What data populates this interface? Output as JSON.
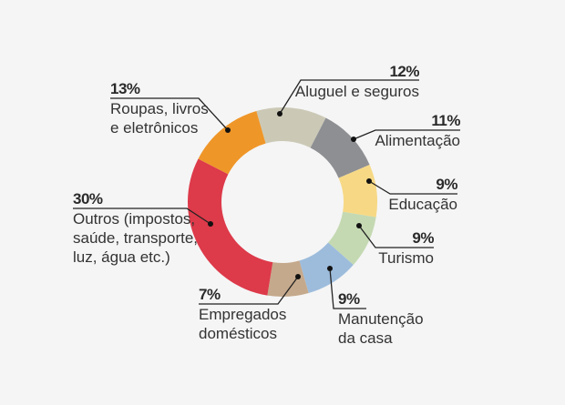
{
  "chart_data": {
    "type": "pie",
    "variant": "donut",
    "title": "",
    "slices": [
      {
        "label": "Aluguel e seguros",
        "value": 12,
        "pct_text": "12%",
        "color": "#cbc9b6"
      },
      {
        "label": "Alimentação",
        "value": 11,
        "pct_text": "11%",
        "color": "#8e8f93"
      },
      {
        "label": "Educação",
        "value": 9,
        "pct_text": "9%",
        "color": "#f7d985"
      },
      {
        "label": "Turismo",
        "value": 9,
        "pct_text": "9%",
        "color": "#c4d9b2"
      },
      {
        "label": "Manutenção da casa",
        "value": 9,
        "pct_text": "9%",
        "color": "#9dbcdc"
      },
      {
        "label": "Empregados domésticos",
        "value": 7,
        "pct_text": "7%",
        "color": "#c5a98c"
      },
      {
        "label": "Outros (impostos, saúde, transporte, luz, água etc.)",
        "value": 30,
        "pct_text": "30%",
        "color": "#dd3a4a"
      },
      {
        "label": "Roupas, livros e eletrônicos",
        "value": 13,
        "pct_text": "13%",
        "color": "#ef9629"
      }
    ],
    "legend_position": "callouts"
  },
  "labels": {
    "aluguel": {
      "pct": "12%",
      "line1": "Aluguel e seguros"
    },
    "alimentacao": {
      "pct": "11%",
      "line1": "Alimentação"
    },
    "educacao": {
      "pct": "9%",
      "line1": "Educação"
    },
    "turismo": {
      "pct": "9%",
      "line1": "Turismo"
    },
    "manutencao": {
      "pct": "9%",
      "line1": "Manutenção",
      "line2": "da casa"
    },
    "empregados": {
      "pct": "7%",
      "line1": "Empregados",
      "line2": "domésticos"
    },
    "outros": {
      "pct": "30%",
      "line1": "Outros (impostos,",
      "line2": "saúde, transporte,",
      "line3": "luz, água etc.)"
    },
    "roupas": {
      "pct": "13%",
      "line1": "Roupas, livros",
      "line2": "e eletrônicos"
    }
  }
}
